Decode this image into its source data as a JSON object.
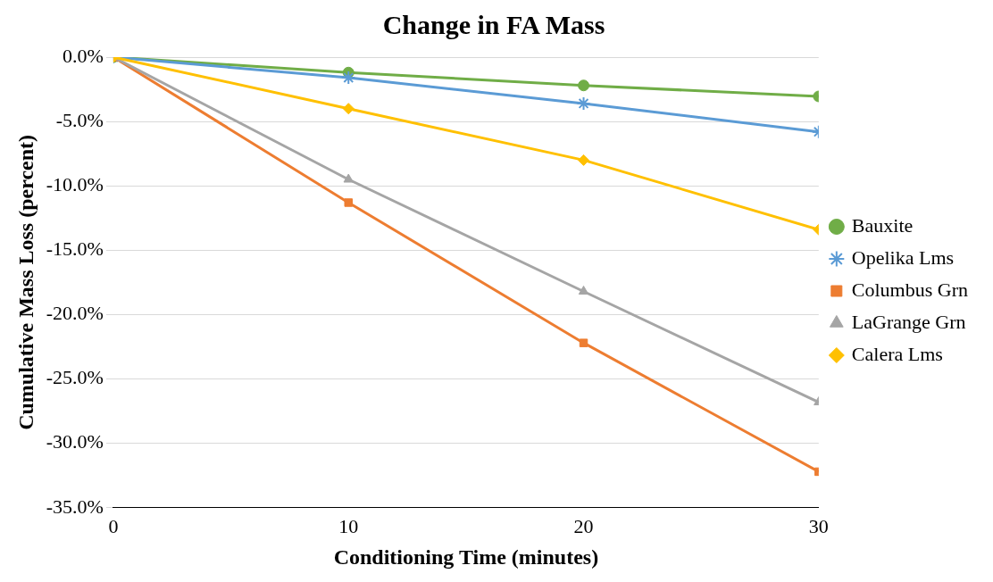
{
  "chart_data": {
    "type": "line",
    "title": "Change in FA Mass",
    "xlabel": "Conditioning Time (minutes)",
    "ylabel": "Cumulative Mass Loss (percent)",
    "x": [
      0,
      10,
      20,
      30
    ],
    "series": [
      {
        "name": "Bauxite",
        "color": "#70ad47",
        "marker": "circle",
        "values": [
          0,
          -1.2,
          -2.2,
          -3.05
        ]
      },
      {
        "name": "Opelika Lms",
        "color": "#5b9bd5",
        "marker": "cross",
        "values": [
          0,
          -1.6,
          -3.6,
          -5.8
        ]
      },
      {
        "name": "Columbus Grn",
        "color": "#ed7d31",
        "marker": "square",
        "values": [
          0,
          -11.3,
          -22.2,
          -32.2
        ]
      },
      {
        "name": "LaGrange Grn",
        "color": "#a5a5a5",
        "marker": "triangle",
        "values": [
          0,
          -9.5,
          -18.2,
          -26.8
        ]
      },
      {
        "name": "Calera Lms",
        "color": "#ffc000",
        "marker": "diamond",
        "values": [
          0,
          -4.0,
          -8.0,
          -13.4
        ]
      }
    ],
    "xlim": [
      0,
      30
    ],
    "xticks": [
      0,
      10,
      20,
      30
    ],
    "ylim": [
      -35,
      0
    ],
    "yticks": [
      {
        "value": -35,
        "label": "-35.0%"
      },
      {
        "value": -30,
        "label": "-30.0%"
      },
      {
        "value": -25,
        "label": "-25.0%"
      },
      {
        "value": -20,
        "label": "-20.0%"
      },
      {
        "value": -15,
        "label": "-15.0%"
      },
      {
        "value": -10,
        "label": "-10.0%"
      },
      {
        "value": -5,
        "label": "-5.0%"
      },
      {
        "value": 0,
        "label": "0.0%"
      }
    ],
    "grid": "y",
    "legend": "right",
    "line_style": "solid"
  }
}
